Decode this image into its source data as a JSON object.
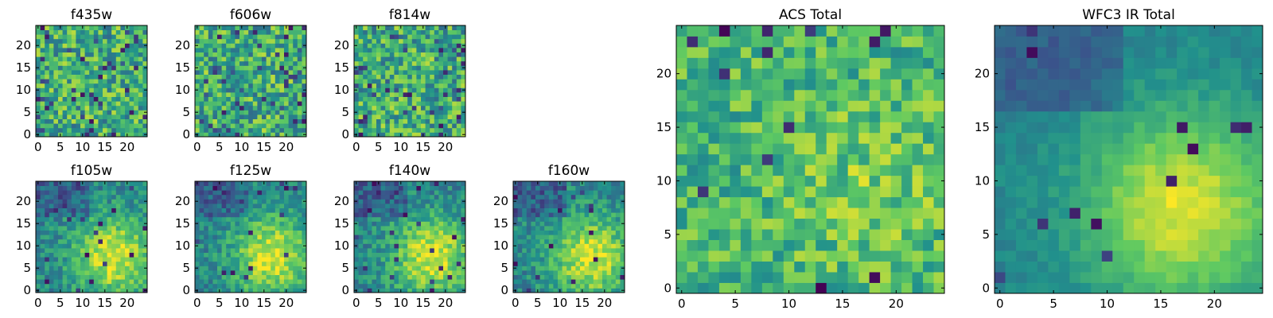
{
  "figure": {
    "colormap": [
      "#440154",
      "#3b528b",
      "#21918c",
      "#5ec962",
      "#fde725"
    ]
  },
  "chart_data": [
    {
      "type": "heatmap",
      "title": "f435w",
      "grid_size": 25,
      "xlim": [
        0,
        24
      ],
      "ylim": [
        0,
        24
      ],
      "xticks": [
        0,
        5,
        10,
        15,
        20
      ],
      "yticks": [
        0,
        5,
        10,
        15,
        20
      ],
      "pattern": "noise",
      "seed": 11
    },
    {
      "type": "heatmap",
      "title": "f606w",
      "grid_size": 25,
      "xlim": [
        0,
        24
      ],
      "ylim": [
        0,
        24
      ],
      "xticks": [
        0,
        5,
        10,
        15,
        20
      ],
      "yticks": [
        0,
        5,
        10,
        15,
        20
      ],
      "pattern": "noise",
      "seed": 23
    },
    {
      "type": "heatmap",
      "title": "f814w",
      "grid_size": 25,
      "xlim": [
        0,
        24
      ],
      "ylim": [
        0,
        24
      ],
      "xticks": [
        0,
        5,
        10,
        15,
        20
      ],
      "yticks": [
        0,
        5,
        10,
        15,
        20
      ],
      "pattern": "noise",
      "seed": 37
    },
    {
      "type": "heatmap",
      "title": "f105w",
      "grid_size": 25,
      "xlim": [
        0,
        24
      ],
      "ylim": [
        0,
        24
      ],
      "xticks": [
        0,
        5,
        10,
        15,
        20
      ],
      "yticks": [
        0,
        5,
        10,
        15,
        20
      ],
      "pattern": "source",
      "seed": 41
    },
    {
      "type": "heatmap",
      "title": "f125w",
      "grid_size": 25,
      "xlim": [
        0,
        24
      ],
      "ylim": [
        0,
        24
      ],
      "xticks": [
        0,
        5,
        10,
        15,
        20
      ],
      "yticks": [
        0,
        5,
        10,
        15,
        20
      ],
      "pattern": "source",
      "seed": 53
    },
    {
      "type": "heatmap",
      "title": "f140w",
      "grid_size": 25,
      "xlim": [
        0,
        24
      ],
      "ylim": [
        0,
        24
      ],
      "xticks": [
        0,
        5,
        10,
        15,
        20
      ],
      "yticks": [
        0,
        5,
        10,
        15,
        20
      ],
      "pattern": "source",
      "seed": 67
    },
    {
      "type": "heatmap",
      "title": "f160w",
      "grid_size": 25,
      "xlim": [
        0,
        24
      ],
      "ylim": [
        0,
        24
      ],
      "xticks": [
        0,
        5,
        10,
        15,
        20
      ],
      "yticks": [
        0,
        5,
        10,
        15,
        20
      ],
      "pattern": "source",
      "seed": 79
    },
    {
      "type": "heatmap",
      "title": "ACS Total",
      "grid_size": 25,
      "xlim": [
        0,
        24
      ],
      "ylim": [
        0,
        24
      ],
      "xticks": [
        0,
        5,
        10,
        15,
        20
      ],
      "yticks": [
        0,
        5,
        10,
        15,
        20
      ],
      "pattern": "noise_bright",
      "seed": 97
    },
    {
      "type": "heatmap",
      "title": "WFC3 IR Total",
      "grid_size": 25,
      "xlim": [
        0,
        24
      ],
      "ylim": [
        0,
        24
      ],
      "xticks": [
        0,
        5,
        10,
        15,
        20
      ],
      "yticks": [
        0,
        5,
        10,
        15,
        20
      ],
      "pattern": "source_smooth",
      "seed": 101
    }
  ]
}
